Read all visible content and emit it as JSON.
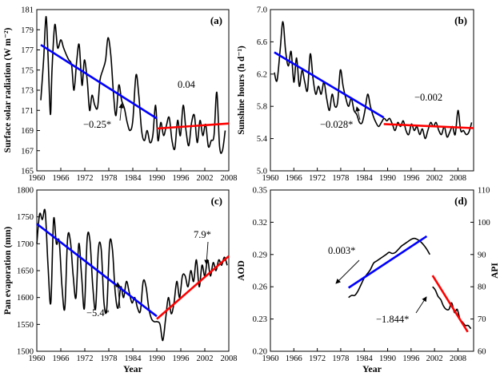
{
  "chart_data": [
    {
      "type": "line",
      "panel_label": "(a)",
      "xlabel": "",
      "ylabel": "Surface solar radiation (W m⁻²)",
      "xlim": [
        1960,
        2008
      ],
      "ylim": [
        165,
        181
      ],
      "xticks": [
        "1960",
        "1966",
        "1972",
        "1978",
        "1984",
        "1990",
        "1996",
        "2002",
        "2008"
      ],
      "yticks": [
        "165",
        "167",
        "169",
        "171",
        "173",
        "175",
        "177",
        "179",
        "181"
      ],
      "series": [
        {
          "color": "#000000",
          "x": [
            1961,
            1961.7,
            1962.3,
            1962.8,
            1963.4,
            1963.8,
            1964.5,
            1965.2,
            1966,
            1966.7,
            1967.4,
            1968,
            1968.7,
            1969.3,
            1970,
            1970.6,
            1971.3,
            1971.9,
            1972.6,
            1973.2,
            1973.8,
            1974.5,
            1975.2,
            1975.8,
            1976.5,
            1977.2,
            1977.8,
            1978.5,
            1979.2,
            1979.8,
            1980.5,
            1981.2,
            1981.9,
            1982.6,
            1983.3,
            1984,
            1984.8,
            1985.5,
            1986.2,
            1986.9,
            1987.6,
            1988.3,
            1989,
            1989.7,
            1990.3,
            1991,
            1991.7,
            1992.4,
            1993.1,
            1993.8,
            1994.5,
            1995.2,
            1995.9,
            1996.6,
            1997.3,
            1998,
            1998.7,
            1999.4,
            2000.1,
            2000.8,
            2001.5,
            2002.2,
            2002.9,
            2003.6,
            2004.3,
            2005,
            2005.7,
            2006.4,
            2007.1
          ],
          "y": [
            172,
            176,
            180.3,
            176.5,
            170.6,
            175,
            179.5,
            177.2,
            178,
            177.2,
            176.5,
            176,
            175.5,
            173,
            176,
            177.5,
            173.5,
            176,
            174,
            171,
            172.5,
            171.5,
            171.3,
            174,
            175,
            176,
            178.2,
            176.5,
            172.5,
            170.5,
            173.5,
            172,
            171.2,
            169.8,
            169,
            170,
            174.5,
            172.5,
            169,
            168,
            169,
            167.8,
            168.5,
            171.5,
            168,
            169.8,
            168.5,
            169.5,
            170.3,
            168,
            167.2,
            170,
            168.5,
            171.5,
            169,
            167.5,
            169.8,
            170.5,
            167.8,
            170,
            168.5,
            169.6,
            167.4,
            168,
            168.5,
            172.8,
            167.4,
            167,
            169
          ]
        },
        {
          "color": "#0000ff",
          "x": [
            1961,
            1990
          ],
          "y": [
            177.5,
            170.2
          ]
        },
        {
          "color": "#ff0000",
          "x": [
            1990,
            2008
          ],
          "y": [
            169.2,
            169.7
          ]
        }
      ],
      "annotations": [
        "−0.25*",
        "0.04"
      ]
    },
    {
      "type": "line",
      "panel_label": "(b)",
      "xlabel": "",
      "ylabel": "Sunshine hours (h d⁻¹)",
      "xlim": [
        1960,
        2012
      ],
      "ylim": [
        5.0,
        7.0
      ],
      "xticks": [
        "1960",
        "1966",
        "1972",
        "1978",
        "1984",
        "1990",
        "1996",
        "2002",
        "2008"
      ],
      "yticks": [
        "5.0",
        "5.4",
        "5.8",
        "6.2",
        "6.6",
        "7.0"
      ],
      "series": [
        {
          "color": "#000000",
          "x": [
            1961,
            1961.7,
            1962.5,
            1963.2,
            1963.9,
            1964.6,
            1965.3,
            1966,
            1966.7,
            1967.4,
            1968.1,
            1968.8,
            1969.5,
            1970.2,
            1970.9,
            1971.6,
            1972.3,
            1973,
            1973.7,
            1974.4,
            1975.1,
            1975.8,
            1976.5,
            1977.2,
            1977.9,
            1978.6,
            1979.3,
            1980,
            1980.7,
            1981.4,
            1982.1,
            1982.8,
            1983.5,
            1984.2,
            1984.9,
            1985.6,
            1986.3,
            1987,
            1987.7,
            1988.4,
            1989.1,
            1989.8,
            1990.5,
            1991.2,
            1991.9,
            1992.6,
            1993.3,
            1994,
            1994.7,
            1995.4,
            1996.1,
            1996.8,
            1997.5,
            1998.2,
            1998.9,
            1999.6,
            2000.3,
            2001,
            2001.7,
            2002.4,
            2003.1,
            2003.8,
            2004.5,
            2005.2,
            2005.9,
            2006.6,
            2007.3,
            2008,
            2008.7,
            2009.4,
            2010.1,
            2010.8,
            2011.5
          ],
          "y": [
            6.22,
            6.12,
            6.5,
            6.85,
            6.48,
            6.3,
            6.48,
            6.1,
            6.4,
            6.05,
            6.25,
            6.1,
            6.0,
            6.45,
            6.15,
            5.95,
            6.05,
            5.95,
            6.1,
            5.9,
            5.75,
            5.95,
            5.8,
            5.85,
            6.25,
            6.05,
            5.9,
            5.8,
            5.9,
            5.75,
            5.7,
            5.6,
            5.6,
            5.75,
            5.95,
            5.8,
            5.68,
            5.6,
            5.55,
            5.6,
            5.65,
            5.62,
            5.65,
            5.58,
            5.5,
            5.6,
            5.55,
            5.62,
            5.5,
            5.45,
            5.58,
            5.5,
            5.55,
            5.45,
            5.52,
            5.4,
            5.5,
            5.6,
            5.55,
            5.6,
            5.5,
            5.45,
            5.55,
            5.42,
            5.48,
            5.55,
            5.45,
            5.75,
            5.5,
            5.5,
            5.45,
            5.48,
            5.6
          ]
        },
        {
          "color": "#0000ff",
          "x": [
            1961,
            1989
          ],
          "y": [
            6.47,
            5.66
          ]
        },
        {
          "color": "#ff0000",
          "x": [
            1989,
            2012
          ],
          "y": [
            5.58,
            5.53
          ]
        }
      ],
      "annotations": [
        "−0.028*",
        "−0.002"
      ]
    },
    {
      "type": "line",
      "panel_label": "(c)",
      "xlabel": "Year",
      "ylabel": "Pan evaporation (mm)",
      "xlim": [
        1960,
        2008
      ],
      "ylim": [
        1500,
        1800
      ],
      "xticks": [
        "1960",
        "1966",
        "1972",
        "1978",
        "1984",
        "1990",
        "1996",
        "2002",
        "2008"
      ],
      "yticks": [
        "1500",
        "1550",
        "1600",
        "1650",
        "1700",
        "1750",
        "1800"
      ],
      "series": [
        {
          "color": "#000000",
          "x": [
            1960,
            1960.7,
            1961.4,
            1962.1,
            1962.8,
            1963.5,
            1964.2,
            1964.9,
            1965.6,
            1966.3,
            1967,
            1967.7,
            1968.4,
            1969.1,
            1969.8,
            1970.5,
            1971.2,
            1971.9,
            1972.6,
            1973.3,
            1974,
            1974.7,
            1975.4,
            1976.1,
            1976.8,
            1977.5,
            1978.2,
            1978.9,
            1979.6,
            1980.3,
            1981,
            1981.7,
            1982.4,
            1983.1,
            1983.8,
            1984.5,
            1985.2,
            1985.9,
            1986.6,
            1987.3,
            1988,
            1988.7,
            1989.4,
            1990.1,
            1990.8,
            1991.5,
            1992.2,
            1992.9,
            1993.6,
            1994.3,
            1995,
            1995.7,
            1996.4,
            1997.1,
            1997.8,
            1998.5,
            1999.2,
            1999.9,
            2000.6,
            2001.3,
            2002,
            2002.7,
            2003.4,
            2004.1,
            2004.8,
            2005.5,
            2006.2,
            2006.9,
            2007.6
          ],
          "y": [
            1700,
            1755,
            1745,
            1760,
            1660,
            1590,
            1745,
            1700,
            1705,
            1620,
            1580,
            1710,
            1705,
            1640,
            1600,
            1700,
            1640,
            1580,
            1710,
            1705,
            1620,
            1580,
            1690,
            1690,
            1590,
            1580,
            1700,
            1690,
            1610,
            1580,
            1620,
            1600,
            1630,
            1610,
            1590,
            1600,
            1580,
            1575,
            1630,
            1620,
            1580,
            1560,
            1555,
            1555,
            1550,
            1520,
            1560,
            1600,
            1570,
            1590,
            1630,
            1600,
            1640,
            1640,
            1620,
            1650,
            1630,
            1670,
            1620,
            1660,
            1640,
            1670,
            1640,
            1665,
            1650,
            1670,
            1660,
            1675,
            1660
          ]
        },
        {
          "color": "#0000ff",
          "x": [
            1960,
            1990
          ],
          "y": [
            1737,
            1565
          ]
        },
        {
          "color": "#ff0000",
          "x": [
            1990,
            2008
          ],
          "y": [
            1560,
            1677
          ]
        }
      ],
      "annotations": [
        "−5.4*",
        "7.9*"
      ]
    },
    {
      "type": "line",
      "panel_label": "(d)",
      "xlabel": "Year",
      "ylabel": "AOD",
      "ylabel_right": "API",
      "xlim": [
        1960,
        2012
      ],
      "ylim": [
        0.2,
        0.35
      ],
      "ylim_right": [
        60,
        110
      ],
      "xticks": [
        "1960",
        "1966",
        "1972",
        "1978",
        "1984",
        "1990",
        "1996",
        "2002",
        "2008"
      ],
      "yticks": [
        "0.20",
        "0.23",
        "0.26",
        "0.29",
        "0.32",
        "0.35"
      ],
      "yticks_right": [
        "60",
        "70",
        "80",
        "90",
        "100",
        "110"
      ],
      "series": [
        {
          "color": "#000000",
          "axis": "left",
          "x": [
            1980,
            1980.8,
            1981.6,
            1982.4,
            1983.2,
            1984,
            1984.8,
            1985.6,
            1986.4,
            1987.2,
            1988,
            1988.8,
            1989.6,
            1990.4,
            1991.2,
            1992,
            1992.8,
            1993.6,
            1994.4,
            1995.2,
            1996,
            1996.8,
            1997.6,
            1998.4,
            1999.2,
            2000,
            2000.8
          ],
          "y": [
            0.25,
            0.252,
            0.252,
            0.256,
            0.262,
            0.268,
            0.272,
            0.276,
            0.282,
            0.284,
            0.286,
            0.288,
            0.29,
            0.292,
            0.291,
            0.292,
            0.295,
            0.298,
            0.3,
            0.302,
            0.304,
            0.305,
            0.304,
            0.302,
            0.299,
            0.295,
            0.29
          ]
        },
        {
          "color": "#000000",
          "axis": "right",
          "x": [
            2001.5,
            2002.2,
            2002.9,
            2003.6,
            2004.3,
            2005,
            2005.7,
            2006.4,
            2007.1,
            2007.8,
            2008.5,
            2009.2,
            2009.9,
            2010.6,
            2011.3
          ],
          "y": [
            80,
            79,
            77,
            76,
            74,
            73,
            73,
            75,
            72,
            73,
            70,
            69,
            68,
            68,
            67
          ]
        },
        {
          "color": "#0000ff",
          "axis": "left",
          "x": [
            1980,
            2000
          ],
          "y": [
            0.259,
            0.307
          ]
        },
        {
          "color": "#ff0000",
          "axis": "right",
          "x": [
            2001.5,
            2010.5
          ],
          "y": [
            83.5,
            66
          ]
        }
      ],
      "annotations": [
        "0.003*",
        "−1.844*"
      ]
    }
  ]
}
